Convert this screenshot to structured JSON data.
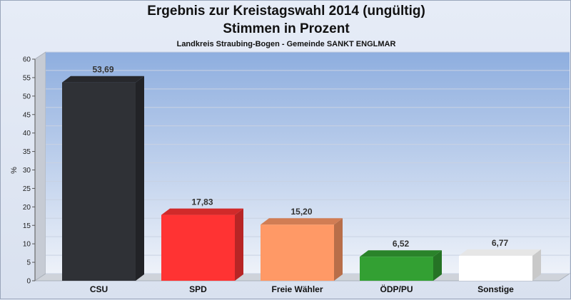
{
  "title": "Ergebnis zur Kreistagswahl 2014 (ungültig)",
  "subtitle_line": "Stimmen in Prozent",
  "caption": "Landkreis Straubing-Bogen - Gemeinde SANKT ENGLMAR",
  "chart_data": {
    "type": "bar",
    "title": "Ergebnis zur Kreistagswahl 2014 (ungültig)",
    "subtitle": "Stimmen in Prozent",
    "ylabel": "%",
    "xlabel": "",
    "ylim": [
      0,
      60
    ],
    "yticks": [
      0,
      5,
      10,
      15,
      20,
      25,
      30,
      35,
      40,
      45,
      50,
      55,
      60
    ],
    "categories": [
      "CSU",
      "SPD",
      "Freie Wähler",
      "ÖDP/PU",
      "Sonstige"
    ],
    "values": [
      53.69,
      17.83,
      15.2,
      6.52,
      6.77
    ],
    "value_labels": [
      "53,69",
      "17,83",
      "15,20",
      "6,52",
      "6,77"
    ],
    "colors": [
      "#2f3136",
      "#ff3333",
      "#ff9966",
      "#33a033",
      "#ffffff"
    ],
    "grid": true,
    "legend": "none"
  }
}
